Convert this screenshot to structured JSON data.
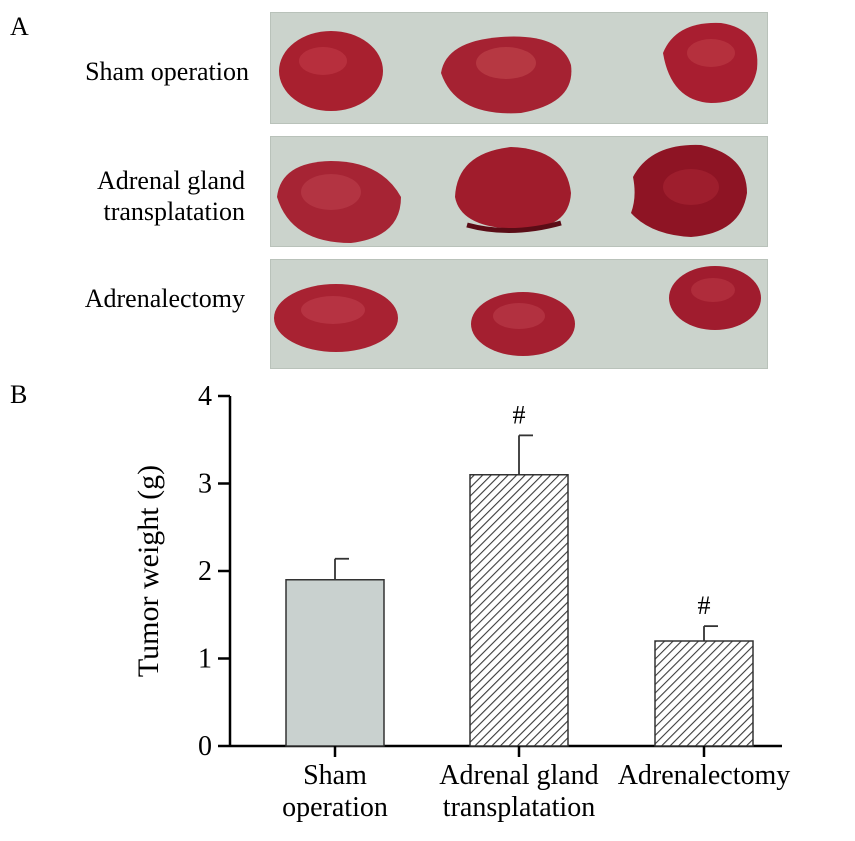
{
  "panel_a": {
    "letter": "A",
    "rows": [
      {
        "label_lines": [
          "Sham operation"
        ]
      },
      {
        "label_lines": [
          "Adrenal gland",
          "transplatation"
        ]
      },
      {
        "label_lines": [
          "Adrenalectomy"
        ]
      }
    ]
  },
  "panel_b": {
    "letter": "B"
  },
  "colors": {
    "photo_background": "#cbd3cc",
    "tumor": "#a8202f",
    "tumor_dark": "#7a1020",
    "bar_plain": "#c9d1cf",
    "bar_hatch": "#3a3a3a"
  },
  "chart_data": {
    "type": "bar",
    "ylabel": "Tumor weight (g)",
    "xlabel": "",
    "ylim": [
      0,
      4
    ],
    "yticks": [
      0,
      1,
      2,
      3,
      4
    ],
    "categories": [
      {
        "lines": [
          "Sham",
          "operation"
        ]
      },
      {
        "lines": [
          "Adrenal gland",
          "transplatation"
        ]
      },
      {
        "lines": [
          "Adrenalectomy"
        ]
      }
    ],
    "values": [
      1.9,
      3.1,
      1.2
    ],
    "errors": [
      0.24,
      0.45,
      0.17
    ],
    "fills": [
      "plain",
      "hatched",
      "hatched"
    ],
    "annotations": [
      "",
      "#",
      "#"
    ]
  }
}
